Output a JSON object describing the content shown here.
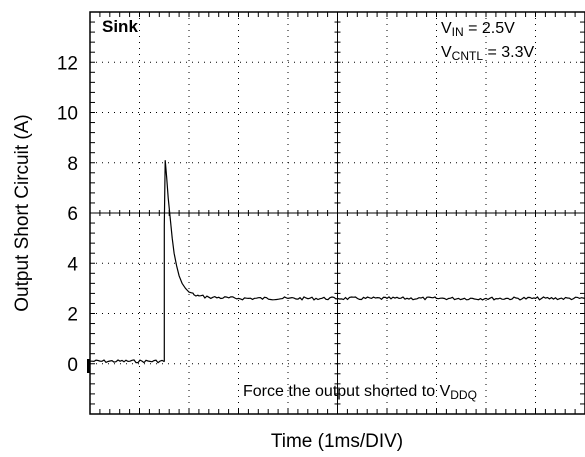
{
  "chart_data": {
    "type": "line",
    "ylabel": "Output Short Circuit (A)",
    "xlabel": "Time  (1ms/DIV)",
    "ylim": [
      -2,
      14
    ],
    "y_ticks": [
      0,
      2,
      4,
      6,
      8,
      10,
      12
    ],
    "y_tick_labels": [
      "0",
      "2",
      "4",
      "6",
      "8",
      "10",
      "12"
    ],
    "x_divisions": 10,
    "grid": true,
    "series": [
      {
        "x": [
          0,
          1.5,
          1.5,
          1.52,
          1.55,
          1.58,
          1.62,
          1.66,
          1.7,
          1.75,
          1.8,
          1.86,
          1.93,
          2.0,
          2.1,
          2.2,
          2.4,
          3.0,
          4.0,
          5.0,
          6.0,
          7.0,
          8.0,
          9.0,
          10.0
        ],
        "y": [
          0.1,
          0.1,
          5.5,
          8.1,
          7.4,
          6.6,
          5.8,
          5.0,
          4.4,
          3.9,
          3.5,
          3.2,
          3.0,
          2.85,
          2.75,
          2.7,
          2.65,
          2.6,
          2.6,
          2.6,
          2.6,
          2.6,
          2.6,
          2.6,
          2.6
        ]
      }
    ],
    "annotations": {
      "sink": "Sink",
      "vin_main": "V",
      "vin_sub": "IN",
      "vin_value": " = 2.5V",
      "vcntl_main": "V",
      "vcntl_sub": "CNTL",
      "vcntl_value": "  = 3.3V",
      "force_main": "Force the output shorted to V",
      "force_sub": "DDQ"
    }
  }
}
